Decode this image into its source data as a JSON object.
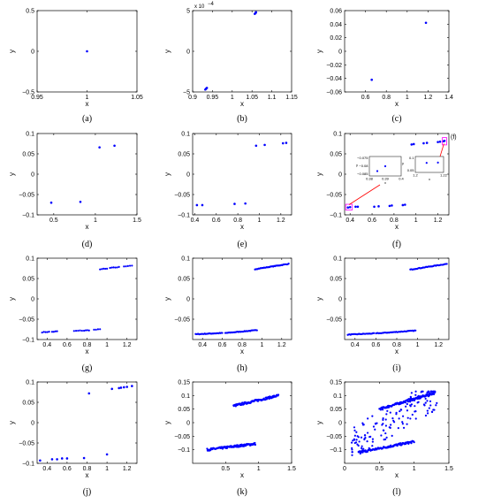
{
  "figure": {
    "marker_color": "#0000ff",
    "highlight_color": "#ff00ff",
    "arrow_color": "#ff0000"
  },
  "chart_data": [
    {
      "label": "(a)",
      "type": "scatter",
      "xlabel": "x",
      "ylabel": "y",
      "xlim": [
        0.95,
        1.05
      ],
      "ylim": [
        -0.5,
        0.5
      ],
      "xticks": [
        0.95,
        1,
        1.05
      ],
      "xtick_labels": [
        "0.95",
        "1",
        "1.05"
      ],
      "yticks": [
        -0.5,
        0,
        0.5
      ],
      "ytick_labels": [
        "−0.5",
        "0",
        "0.5"
      ],
      "x": [
        1.0
      ],
      "y": [
        0.0
      ]
    },
    {
      "label": "(b)",
      "type": "scatter",
      "xlabel": "x",
      "ylabel": "y",
      "xlim": [
        0.9,
        1.15
      ],
      "ylim": [
        -0.0005,
        0.0005
      ],
      "xticks": [
        0.9,
        0.95,
        1,
        1.05,
        1.1,
        1.15
      ],
      "xtick_labels": [
        "0.9",
        "0.95",
        "1",
        "1.05",
        "1.1",
        "1.15"
      ],
      "yticks": [
        -0.0005,
        0,
        0.0005
      ],
      "ytick_labels": [
        "−5",
        "0",
        "5"
      ],
      "y_multiplier": "x 10",
      "y_exponent": "−4",
      "x": [
        0.932,
        0.934,
        0.936,
        1.057,
        1.059,
        1.06
      ],
      "y": [
        -0.00047,
        -0.00046,
        -0.00045,
        0.00046,
        0.00047,
        0.00048
      ]
    },
    {
      "label": "(c)",
      "type": "scatter",
      "xlabel": "x",
      "ylabel": "y",
      "xlim": [
        0.4,
        1.4
      ],
      "ylim": [
        -0.06,
        0.06
      ],
      "xticks": [
        0.6,
        0.8,
        1,
        1.2,
        1.4
      ],
      "xtick_labels": [
        "0.6",
        "0.8",
        "1",
        "1.2",
        "1.4"
      ],
      "yticks": [
        -0.06,
        -0.04,
        -0.02,
        0,
        0.02,
        0.04,
        0.06
      ],
      "ytick_labels": [
        "−0.06",
        "−0.04",
        "−0.02",
        "0",
        "0.02",
        "0.04",
        "0.06"
      ],
      "x": [
        0.66,
        1.18
      ],
      "y": [
        -0.042,
        0.042
      ]
    },
    {
      "label": "(d)",
      "type": "scatter",
      "xlabel": "x",
      "ylabel": "y",
      "xlim": [
        0.3,
        1.5
      ],
      "ylim": [
        -0.1,
        0.1
      ],
      "xticks": [
        0.5,
        1,
        1.5
      ],
      "xtick_labels": [
        "0.5",
        "1",
        "1.5"
      ],
      "yticks": [
        -0.1,
        -0.05,
        0,
        0.05,
        0.1
      ],
      "ytick_labels": [
        "−0.1",
        "−0.05",
        "0",
        "0.05",
        "0.1"
      ],
      "x": [
        0.47,
        0.82,
        1.05,
        1.23
      ],
      "y": [
        -0.07,
        -0.068,
        0.066,
        0.07
      ]
    },
    {
      "label": "(e)",
      "type": "scatter",
      "xlabel": "x",
      "ylabel": "y",
      "xlim": [
        0.38,
        1.3
      ],
      "ylim": [
        -0.1,
        0.1
      ],
      "xticks": [
        0.4,
        0.6,
        0.8,
        1,
        1.2
      ],
      "xtick_labels": [
        "0.4",
        "0.6",
        "0.8",
        "1",
        "1.2"
      ],
      "yticks": [
        -0.1,
        -0.05,
        0,
        0.05,
        0.1
      ],
      "ytick_labels": [
        "−0.1",
        "−0.05",
        "0",
        "0.05",
        "0.1"
      ],
      "x": [
        0.42,
        0.47,
        0.77,
        0.87,
        0.97,
        1.05,
        1.22,
        1.25
      ],
      "y": [
        -0.076,
        -0.076,
        -0.073,
        -0.072,
        0.07,
        0.072,
        0.076,
        0.077
      ]
    },
    {
      "label": "(f)",
      "type": "scatter",
      "xlabel": "x",
      "ylabel": "y",
      "xlim": [
        0.35,
        1.3
      ],
      "ylim": [
        -0.1,
        0.1
      ],
      "xticks": [
        0.4,
        0.6,
        0.8,
        1,
        1.2
      ],
      "xtick_labels": [
        "0.4",
        "0.6",
        "0.8",
        "1",
        "1.2"
      ],
      "yticks": [
        -0.1,
        -0.05,
        0,
        0.05,
        0.1
      ],
      "ytick_labels": [
        "−0.1",
        "−0.05",
        "0",
        "0.05",
        "0.1"
      ],
      "x": [
        0.38,
        0.4,
        0.45,
        0.47,
        0.62,
        0.66,
        0.76,
        0.78,
        0.88,
        0.9,
        0.96,
        0.98,
        1.07,
        1.1,
        1.2,
        1.22,
        1.25,
        1.26
      ],
      "y": [
        -0.082,
        -0.081,
        -0.08,
        -0.08,
        -0.08,
        -0.079,
        -0.078,
        -0.077,
        -0.076,
        -0.075,
        0.073,
        0.074,
        0.076,
        0.077,
        0.079,
        0.08,
        0.081,
        0.082
      ],
      "insets": [
        {
          "xlim": [
            0.37,
            0.41
          ],
          "ylim": [
            -0.085,
            -0.073
          ],
          "xtick_labels": [
            "0.38",
            "0.39",
            "0.4"
          ],
          "xlabel": "x",
          "ytick_labels": [
            "−0.075",
            "−0.08",
            "−0.085"
          ],
          "ylabel": "y",
          "x": [
            0.38,
            0.39
          ],
          "y": [
            -0.082,
            -0.079
          ]
        },
        {
          "xlim": [
            1.2,
            1.23
          ],
          "ylim": [
            0.05,
            0.1
          ],
          "xtick_labels": [
            "1.2",
            "1.22"
          ],
          "xlabel": "x",
          "ytick_labels": [
            "0.1",
            "0.05"
          ],
          "ylabel": "y",
          "x": [
            1.212,
            1.224
          ],
          "y": [
            0.08,
            0.081
          ]
        }
      ],
      "annotation": "(f)"
    },
    {
      "label": "(g)",
      "type": "scatter",
      "xlabel": "x",
      "ylabel": "y",
      "xlim": [
        0.3,
        1.3
      ],
      "ylim": [
        -0.1,
        0.1
      ],
      "xticks": [
        0.4,
        0.6,
        0.8,
        1,
        1.2
      ],
      "xtick_labels": [
        "0.4",
        "0.6",
        "0.8",
        "1",
        "1.2"
      ],
      "yticks": [
        -0.1,
        -0.05,
        0,
        0.05,
        0.1
      ],
      "ytick_labels": [
        "−0.1",
        "−0.05",
        "0",
        "0.05",
        "0.1"
      ],
      "segments": [
        {
          "x": [
            0.35,
            0.42
          ],
          "y": [
            -0.082,
            -0.081
          ],
          "n": 5
        },
        {
          "x": [
            0.45,
            0.5
          ],
          "y": [
            -0.081,
            -0.08
          ],
          "n": 4
        },
        {
          "x": [
            0.67,
            0.75
          ],
          "y": [
            -0.079,
            -0.078
          ],
          "n": 5
        },
        {
          "x": [
            0.77,
            0.82
          ],
          "y": [
            -0.078,
            -0.077
          ],
          "n": 4
        },
        {
          "x": [
            0.87,
            0.93
          ],
          "y": [
            -0.076,
            -0.075
          ],
          "n": 4
        },
        {
          "x": [
            0.93,
            1.0
          ],
          "y": [
            0.073,
            0.074
          ],
          "n": 5
        },
        {
          "x": [
            1.03,
            1.12
          ],
          "y": [
            0.076,
            0.078
          ],
          "n": 6
        },
        {
          "x": [
            1.17,
            1.25
          ],
          "y": [
            0.08,
            0.082
          ],
          "n": 5
        }
      ]
    },
    {
      "label": "(h)",
      "type": "scatter",
      "xlabel": "x",
      "ylabel": "y",
      "xlim": [
        0.3,
        1.3
      ],
      "ylim": [
        -0.1,
        0.1
      ],
      "xticks": [
        0.4,
        0.6,
        0.8,
        1,
        1.2
      ],
      "xtick_labels": [
        "0.4",
        "0.6",
        "0.8",
        "1",
        "1.2"
      ],
      "yticks": [
        -0.05,
        0,
        0.05,
        0.1
      ],
      "ytick_labels": [
        "−0.05",
        "0",
        "0.05",
        "0.1"
      ],
      "segments": [
        {
          "x": [
            0.33,
            0.6
          ],
          "y": [
            -0.087,
            -0.084
          ],
          "n": 30
        },
        {
          "x": [
            0.63,
            0.95
          ],
          "y": [
            -0.084,
            -0.077
          ],
          "n": 34
        },
        {
          "x": [
            0.93,
            1.27
          ],
          "y": [
            0.073,
            0.086
          ],
          "n": 38
        }
      ]
    },
    {
      "label": "(i)",
      "type": "scatter",
      "xlabel": "x",
      "ylabel": "y",
      "xlim": [
        0.3,
        1.3
      ],
      "ylim": [
        -0.1,
        0.1
      ],
      "xticks": [
        0.4,
        0.6,
        0.8,
        1,
        1.2
      ],
      "xtick_labels": [
        "0.4",
        "0.6",
        "0.8",
        "1",
        "1.2"
      ],
      "yticks": [
        -0.05,
        0,
        0.05,
        0.1
      ],
      "ytick_labels": [
        "−0.05",
        "0",
        "0.05",
        "0.1"
      ],
      "segments": [
        {
          "x": [
            0.33,
            0.58
          ],
          "y": [
            -0.088,
            -0.085
          ],
          "n": 28
        },
        {
          "x": [
            0.6,
            0.98
          ],
          "y": [
            -0.085,
            -0.078
          ],
          "n": 40
        },
        {
          "x": [
            0.93,
            1.28
          ],
          "y": [
            0.072,
            0.086
          ],
          "n": 38
        }
      ]
    },
    {
      "label": "(j)",
      "type": "scatter",
      "xlabel": "x",
      "ylabel": "y",
      "xlim": [
        0.3,
        1.3
      ],
      "ylim": [
        -0.1,
        0.1
      ],
      "xticks": [
        0.4,
        0.6,
        0.8,
        1,
        1.2
      ],
      "xtick_labels": [
        "0.4",
        "0.6",
        "0.8",
        "1",
        "1.2"
      ],
      "yticks": [
        -0.1,
        -0.05,
        0,
        0.05,
        0.1
      ],
      "ytick_labels": [
        "−0.1",
        "−0.05",
        "0",
        "0.05",
        "0.1"
      ],
      "x": [
        0.33,
        0.45,
        0.5,
        0.55,
        0.6,
        0.77,
        0.82,
        1.0,
        1.05,
        1.12,
        1.14,
        1.17,
        1.2,
        1.25
      ],
      "y": [
        -0.093,
        -0.09,
        -0.09,
        -0.088,
        -0.088,
        -0.087,
        0.072,
        -0.078,
        0.083,
        0.085,
        0.086,
        0.087,
        0.088,
        0.09
      ]
    },
    {
      "label": "(k)",
      "type": "scatter",
      "xlabel": "x",
      "ylabel": "y",
      "xlim": [
        0,
        1.5
      ],
      "ylim": [
        -0.15,
        0.15
      ],
      "xticks": [
        0.5,
        1,
        1.5
      ],
      "xtick_labels": [
        "0.5",
        "1",
        "1.5"
      ],
      "yticks": [
        -0.1,
        -0.05,
        0,
        0.05,
        0.1,
        0.15
      ],
      "ytick_labels": [
        "−0.1",
        "−0.05",
        "0",
        "0.05",
        "0.1",
        "0.15"
      ],
      "segments": [
        {
          "x": [
            0.22,
            0.95
          ],
          "y": [
            -0.1,
            -0.078
          ],
          "n": 110
        },
        {
          "x": [
            0.62,
            1.3
          ],
          "y": [
            0.062,
            0.1
          ],
          "n": 100
        }
      ]
    },
    {
      "label": "(l)",
      "type": "scatter",
      "xlabel": "x",
      "ylabel": "y",
      "xlim": [
        0,
        1.5
      ],
      "ylim": [
        -0.15,
        0.15
      ],
      "xticks": [
        0,
        0.5,
        1,
        1.5
      ],
      "xtick_labels": [
        "0",
        "0.5",
        "1",
        "1.5"
      ],
      "yticks": [
        -0.1,
        -0.05,
        0,
        0.05,
        0.1,
        0.15
      ],
      "ytick_labels": [
        "−0.1",
        "−0.05",
        "0",
        "0.05",
        "0.1",
        "0.15"
      ],
      "segments": [
        {
          "x": [
            0.2,
            1.0
          ],
          "y": [
            -0.11,
            -0.07
          ],
          "n": 120
        },
        {
          "x": [
            0.5,
            1.3
          ],
          "y": [
            0.05,
            0.11
          ],
          "n": 120
        }
      ],
      "scatter_cloud": {
        "xlim": [
          0.1,
          1.35
        ],
        "ylim": [
          -0.12,
          0.115
        ],
        "n": 160
      }
    }
  ]
}
